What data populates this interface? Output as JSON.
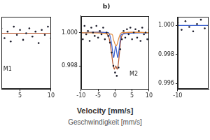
{
  "chart_data": [
    {
      "type": "scatter",
      "xlim": [
        2,
        10
      ],
      "xticks": [
        5,
        10
      ],
      "ylim": [
        0.9966,
        1.001
      ],
      "grid": false,
      "tick_labels": "x",
      "annotations": [
        {
          "text": "M1",
          "x": 3,
          "y": 0.9978
        }
      ],
      "series": [
        {
          "type": "scatter",
          "color": "#1c1c2a",
          "marker": "circle",
          "x": [
            2,
            2.5,
            3,
            3.5,
            4,
            4.5,
            5,
            5.5,
            6,
            6.5,
            7,
            7.5,
            8,
            8.5,
            9,
            9.5,
            10
          ],
          "values": [
            1.0003,
            0.9997,
            1.0001,
            0.9995,
            1.0004,
            0.9999,
            1.0002,
            0.9996,
            1.0,
            1.0003,
            0.9998,
            1.0001,
            0.9994,
            1.0002,
            0.9999,
            1.0004,
            0.9997
          ]
        },
        {
          "type": "line",
          "color": "#b5552e",
          "line_style": "solid",
          "x": [
            2,
            10
          ],
          "values": [
            1.0,
            1.0
          ]
        },
        {
          "type": "line",
          "color": "#3a5fcd",
          "line_style": "solid",
          "x": [
            2,
            10
          ],
          "values": [
            1.0,
            1.0
          ]
        }
      ]
    },
    {
      "type": "scatter",
      "title": "b)",
      "xlabel": [
        "Velocity [mm/s]",
        "Geschwindigkeit [mm/s]"
      ],
      "xlim": [
        -10,
        10
      ],
      "xticks": [
        -10,
        -5,
        0,
        5,
        10
      ],
      "ylim": [
        0.9966,
        1.001
      ],
      "yticks": [
        {
          "value": 0.998,
          "label": "0.998"
        },
        {
          "value": 1.0,
          "label": "1.000"
        }
      ],
      "grid": false,
      "annotations": [
        {
          "text": "M2",
          "x": 5.5,
          "y": 0.9975
        }
      ],
      "series": [
        {
          "type": "scatter",
          "color": "#1c1c2a",
          "marker": "circle",
          "x": [
            -10,
            -9.5,
            -9,
            -8.5,
            -8,
            -7.5,
            -7,
            -6.5,
            -6,
            -5.5,
            -5,
            -4.5,
            -4,
            -3.5,
            -3,
            -2.5,
            -2,
            -1.5,
            -1,
            -0.5,
            0,
            0.5,
            1,
            1.5,
            2,
            2.5,
            3,
            3.5,
            4,
            4.5,
            5,
            5.5,
            6,
            6.5,
            7,
            7.5,
            8,
            8.5,
            9,
            9.5,
            10
          ],
          "values": [
            1.0002,
            0.9996,
            1.0004,
            0.9999,
            1.0001,
            0.9995,
            1.0003,
            1.0,
            0.9998,
            1.0004,
            0.9997,
            1.0001,
            0.9999,
            1.0003,
            0.9996,
            1.0,
            0.9998,
            0.9994,
            0.9988,
            0.998,
            0.9976,
            0.9974,
            0.9979,
            0.999,
            0.9996,
            1.0001,
            0.9997,
            1.0002,
            0.9999,
            1.0003,
            0.9996,
            1.0,
            1.0002,
            0.9997,
            1.0001,
            0.9995,
            1.0003,
            0.9999,
            1.0,
            0.9996,
            1.0002
          ]
        },
        {
          "type": "line",
          "color": "#e08a3c",
          "line_style": "solid",
          "x": [
            -10,
            -1,
            -0.5,
            0,
            0.3,
            0.6,
            1,
            1.5,
            2,
            10
          ],
          "values": [
            1.0,
            0.9999,
            0.9996,
            0.9993,
            0.9992,
            0.9993,
            0.9996,
            0.9999,
            1.0,
            1.0
          ]
        },
        {
          "type": "line",
          "color": "#3a5fcd",
          "line_style": "solid",
          "x": [
            -10,
            -2,
            -1.5,
            -1,
            -0.7,
            -0.4,
            -0.1,
            0.2,
            0.5,
            0.8,
            1.1,
            1.5,
            2,
            10
          ],
          "values": [
            1.0,
            1.0,
            0.9998,
            0.9993,
            0.9988,
            0.9985,
            0.9989,
            0.9992,
            0.9988,
            0.9985,
            0.9989,
            0.9995,
            0.9999,
            1.0
          ]
        },
        {
          "type": "line",
          "color": "#b5552e",
          "line_style": "solid",
          "x": [
            -10,
            -3,
            -2,
            -1.5,
            -1,
            -0.7,
            -0.4,
            -0.2,
            0,
            0.2,
            0.4,
            0.6,
            0.8,
            1,
            1.3,
            1.6,
            2,
            3,
            10
          ],
          "values": [
            1.0,
            1.0,
            0.9998,
            0.9994,
            0.9987,
            0.9982,
            0.9979,
            0.9978,
            0.9979,
            0.998,
            0.9979,
            0.9978,
            0.9979,
            0.9982,
            0.9988,
            0.9994,
            0.9998,
            1.0,
            1.0
          ]
        }
      ]
    },
    {
      "type": "scatter",
      "xlim": [
        -10,
        -6
      ],
      "xticks": [
        -10
      ],
      "ylim": [
        0.9956,
        1.0006
      ],
      "yticks": [
        {
          "value": 0.996,
          "label": "0.996"
        },
        {
          "value": 0.998,
          "label": "0.998"
        },
        {
          "value": 1.0,
          "label": "1.000"
        }
      ],
      "grid": false,
      "series": [
        {
          "type": "scatter",
          "color": "#1c1c2a",
          "marker": "circle",
          "x": [
            -10,
            -9.5,
            -9,
            -8.5,
            -8,
            -7.5,
            -7,
            -6.5,
            -6
          ],
          "values": [
            1.0002,
            0.9997,
            1.0003,
            0.9999,
            0.9996,
            1.0001,
            1.0004,
            0.9998,
            1.0
          ]
        },
        {
          "type": "line",
          "color": "#3a5fcd",
          "line_style": "solid",
          "x": [
            -10,
            -6
          ],
          "values": [
            1.0,
            1.0
          ]
        }
      ]
    }
  ]
}
